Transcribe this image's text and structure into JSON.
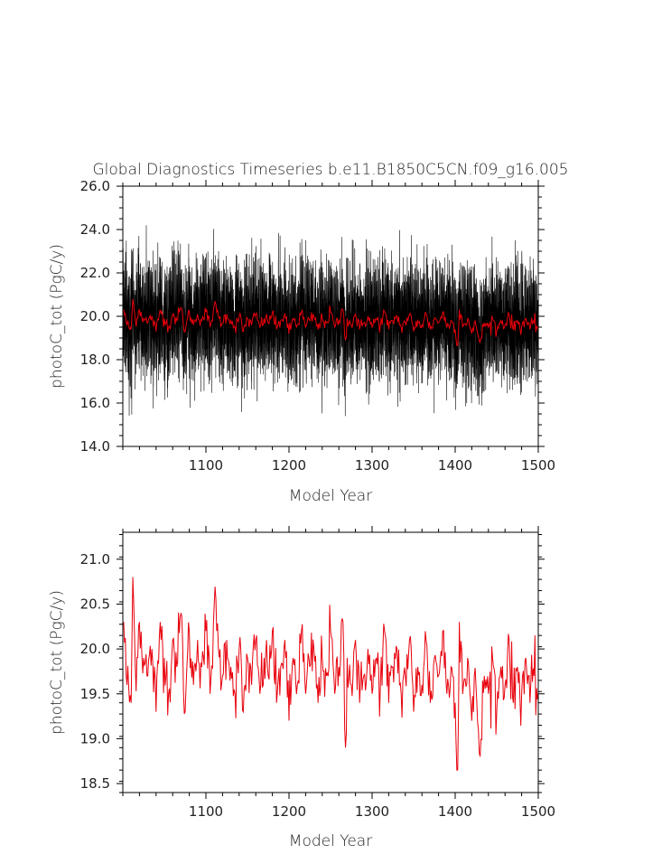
{
  "title": "Global Diagnostics Timeseries b.e11.B1850C5CN.f09_g16.005",
  "colors": {
    "monthly": "#000000",
    "annual": "#e8000b",
    "axis": "#000000"
  },
  "chart_data": [
    {
      "type": "line",
      "xlabel": "Model Year",
      "ylabel": "photoC_tot (PgC/y)",
      "xlim": [
        1000,
        1500
      ],
      "ylim": [
        14.0,
        26.0
      ],
      "xticks": [
        1100,
        1200,
        1300,
        1400,
        1500
      ],
      "xtick_labels": [
        "1100",
        "1200",
        "1300",
        "1400",
        "1500"
      ],
      "yticks": [
        14.0,
        16.0,
        18.0,
        20.0,
        22.0,
        24.0,
        26.0
      ],
      "ytick_labels": [
        "14.0",
        "16.0",
        "18.0",
        "20.0",
        "22.0",
        "24.0",
        "26.0"
      ],
      "grid": false,
      "series_descriptions": [
        {
          "style": "monthly",
          "color": "#000000",
          "mean": 19.8,
          "range": [
            15.4,
            24.2
          ]
        },
        {
          "style": "annual",
          "color": "#e8000b",
          "mean": 19.8,
          "range": [
            18.7,
            20.8
          ]
        }
      ]
    },
    {
      "type": "line",
      "xlabel": "Model Year",
      "ylabel": "photoC_tot (PgC/y)",
      "xlim": [
        1000,
        1500
      ],
      "ylim": [
        18.4,
        21.3
      ],
      "xticks": [
        1100,
        1200,
        1300,
        1400,
        1500
      ],
      "xtick_labels": [
        "1100",
        "1200",
        "1300",
        "1400",
        "1500"
      ],
      "yticks": [
        18.5,
        19.0,
        19.5,
        20.0,
        20.5,
        21.0
      ],
      "ytick_labels": [
        "18.5",
        "19.0",
        "19.5",
        "20.0",
        "20.5",
        "21.0"
      ],
      "grid": false,
      "annual_x_start": 1001,
      "annual_x_step": 1,
      "annual_values_sample": {
        "x": [
          1001,
          1005,
          1010,
          1012,
          1015,
          1020,
          1025,
          1030,
          1035,
          1040,
          1045,
          1050,
          1055,
          1060,
          1065,
          1070,
          1075,
          1080,
          1085,
          1090,
          1095,
          1100,
          1105,
          1110,
          1115,
          1120,
          1125,
          1130,
          1135,
          1140,
          1145,
          1150,
          1155,
          1160,
          1165,
          1170,
          1175,
          1180,
          1185,
          1190,
          1195,
          1200,
          1205,
          1210,
          1215,
          1220,
          1225,
          1230,
          1235,
          1240,
          1245,
          1250,
          1255,
          1260,
          1265,
          1268,
          1270,
          1275,
          1280,
          1285,
          1290,
          1295,
          1300,
          1305,
          1310,
          1315,
          1320,
          1325,
          1330,
          1335,
          1340,
          1345,
          1350,
          1355,
          1360,
          1365,
          1370,
          1375,
          1380,
          1385,
          1390,
          1395,
          1400,
          1403,
          1405,
          1410,
          1415,
          1420,
          1425,
          1430,
          1435,
          1440,
          1445,
          1450,
          1455,
          1460,
          1465,
          1470,
          1475,
          1480,
          1485,
          1490,
          1495,
          1500
        ],
        "y": [
          20.3,
          19.6,
          19.4,
          20.8,
          19.8,
          20.3,
          19.9,
          19.7,
          20.0,
          19.3,
          20.3,
          19.9,
          19.5,
          20.1,
          19.8,
          20.4,
          19.3,
          20.2,
          19.6,
          20.1,
          19.8,
          20.2,
          19.5,
          20.5,
          20.0,
          19.7,
          20.1,
          19.8,
          19.5,
          20.0,
          19.3,
          19.9,
          19.6,
          20.1,
          19.5,
          19.9,
          19.7,
          20.2,
          19.4,
          19.8,
          20.1,
          19.2,
          19.9,
          19.6,
          20.2,
          19.5,
          19.8,
          20.0,
          19.4,
          19.9,
          19.7,
          20.2,
          19.5,
          19.8,
          20.3,
          18.9,
          19.9,
          19.6,
          20.1,
          19.4,
          19.7,
          20.0,
          19.5,
          19.9,
          19.6,
          20.2,
          19.4,
          19.8,
          20.0,
          19.5,
          19.7,
          20.1,
          19.3,
          19.8,
          19.6,
          20.1,
          19.4,
          19.9,
          19.7,
          20.2,
          19.5,
          19.8,
          19.4,
          18.6,
          20.3,
          19.6,
          19.9,
          19.2,
          19.6,
          18.8,
          19.7,
          19.5,
          19.9,
          19.3,
          19.8,
          19.6,
          20.1,
          19.4,
          19.8,
          19.5,
          19.9,
          19.4,
          19.7,
          19.5
        ]
      }
    }
  ]
}
